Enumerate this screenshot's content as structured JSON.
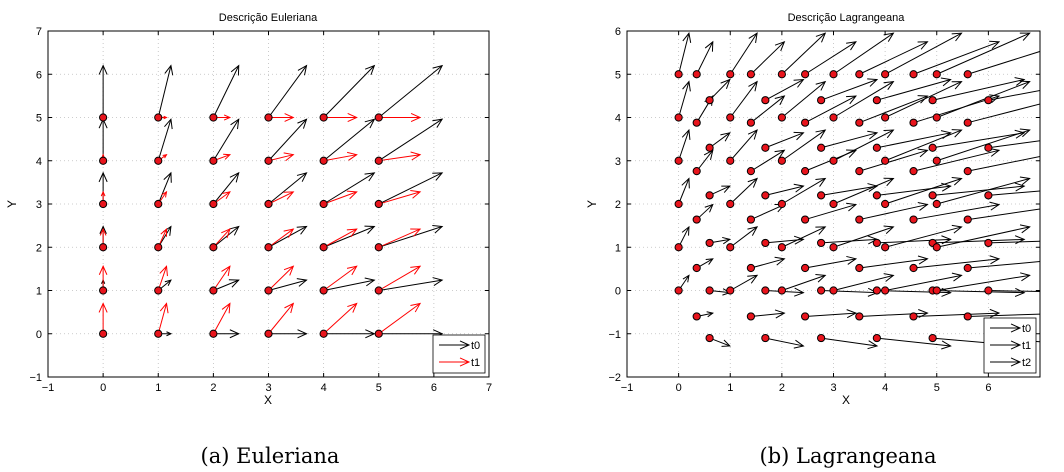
{
  "chart_data": [
    {
      "type": "quiver",
      "title": "Descrição Euleriana",
      "xlabel": "X",
      "ylabel": "Y",
      "xlim": [
        -1,
        7
      ],
      "ylim": [
        -1,
        7
      ],
      "xticks": [
        "−1",
        "0",
        "1",
        "2",
        "3",
        "4",
        "5",
        "6",
        "7"
      ],
      "yticks": [
        "−1",
        "0",
        "1",
        "2",
        "3",
        "4",
        "5",
        "6",
        "7"
      ],
      "grid": true,
      "legend_position": "bottom-right",
      "caption": "(a)  Euleriana",
      "grid_points": {
        "x": [
          0,
          1,
          2,
          3,
          4,
          5
        ],
        "y": [
          0,
          1,
          2,
          3,
          4,
          5
        ]
      },
      "series": [
        {
          "name": "t0",
          "color": "#000000",
          "vector_field": {
            "u": "0.22*x",
            "v": "0.3*y"
          }
        },
        {
          "name": "t1",
          "color": "#ff0000",
          "vector_field": {
            "u": "0.14*x",
            "v": "0.4*(5-y)/5 * 0.9"
          }
        }
      ],
      "markers": {
        "face_color": "#e8141c",
        "edge_color": "#000000"
      }
    },
    {
      "type": "quiver",
      "title": "Descrição Lagrangeana",
      "xlabel": "X",
      "ylabel": "Y",
      "xlim": [
        -1,
        7
      ],
      "ylim": [
        -2,
        6
      ],
      "xticks": [
        "−1",
        "0",
        "1",
        "2",
        "3",
        "4",
        "5",
        "6"
      ],
      "yticks": [
        "−2",
        "−1",
        "0",
        "1",
        "2",
        "3",
        "4",
        "5",
        "6"
      ],
      "grid": true,
      "legend_position": "bottom-right",
      "caption": "(b)  Lagrangeana",
      "series": [
        {
          "name": "t0",
          "color": "#000000"
        },
        {
          "name": "t1",
          "color": "#000000"
        },
        {
          "name": "t2",
          "color": "#000000"
        }
      ],
      "markers": {
        "face_color": "#e8141c",
        "edge_color": "#000000"
      }
    }
  ]
}
